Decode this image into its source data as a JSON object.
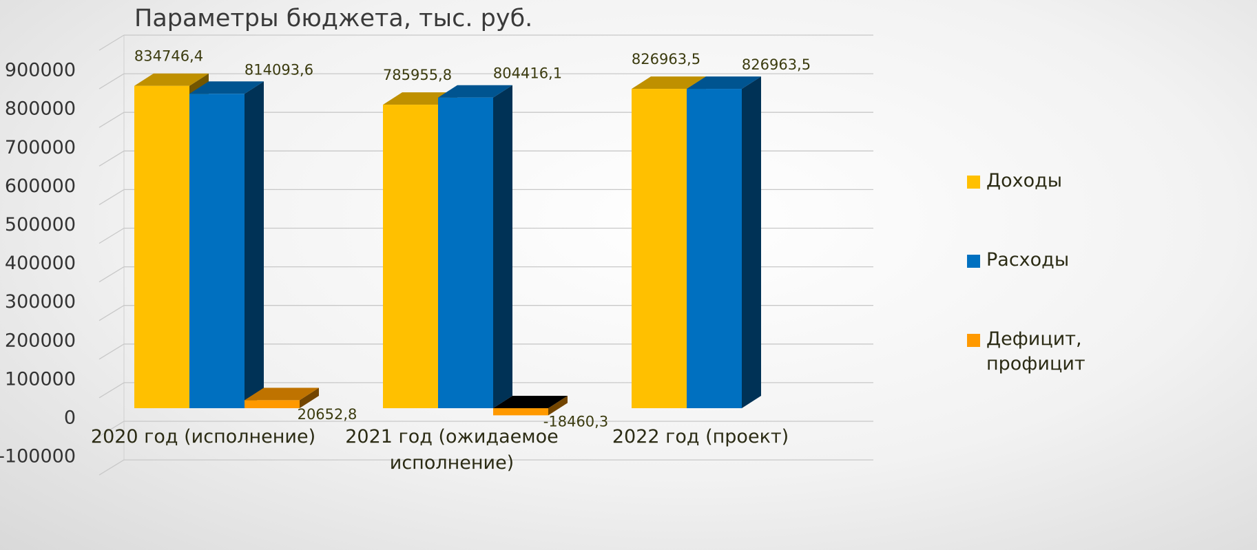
{
  "chart_data": {
    "type": "bar3d",
    "title": "Параметры бюджета, тыс. руб.",
    "categories": [
      "2020 год (исполнение)",
      "2021 год (ожидаемое исполнение)",
      "2022 год (проект)"
    ],
    "series": [
      {
        "name": "Доходы",
        "color": "#FFC000",
        "values": [
          834746.4,
          785955.8,
          826963.5
        ],
        "value_labels": [
          "834746,4",
          "785955,8",
          "826963,5"
        ]
      },
      {
        "name": "Расходы",
        "color": "#0070C0",
        "values": [
          814093.6,
          804416.1,
          826963.5
        ],
        "value_labels": [
          "814093,6",
          "804416,1",
          "826963,5"
        ]
      },
      {
        "name": "Дефицит, профицит",
        "color": "#FF9900",
        "values": [
          20652.8,
          -18460.3,
          null
        ],
        "value_labels": [
          "20652,8",
          "-18460,3",
          null
        ]
      }
    ],
    "ylim": [
      -100000,
      1000000
    ],
    "yticks": [
      -100000,
      0,
      100000,
      200000,
      300000,
      400000,
      500000,
      600000,
      700000,
      800000,
      900000
    ],
    "grid": true,
    "legend": "right"
  }
}
